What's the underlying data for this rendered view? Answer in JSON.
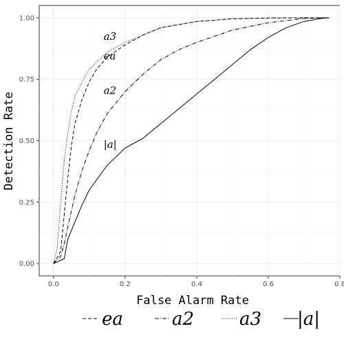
{
  "chart_data": {
    "type": "line",
    "title": "",
    "xlabel": "False Alarm Rate",
    "ylabel": "Detection Rate",
    "xlim": [
      -0.04,
      0.8
    ],
    "ylim": [
      -0.05,
      1.05
    ],
    "x_ticks": [
      "0.0",
      "0.2",
      "0.4",
      "0.6",
      "0.8"
    ],
    "y_ticks": [
      "0.00",
      "0.25",
      "0.50",
      "0.75",
      "1.00"
    ],
    "grid": true,
    "legend_position": "bottom",
    "series": [
      {
        "name": "e^a",
        "label": "ea",
        "dash": "5,3",
        "x": [
          0.0,
          0.02,
          0.03,
          0.04,
          0.05,
          0.06,
          0.08,
          0.1,
          0.12,
          0.15,
          0.2,
          0.25,
          0.3,
          0.4,
          0.5,
          0.6,
          0.7,
          0.77
        ],
        "y": [
          0.0,
          0.05,
          0.2,
          0.35,
          0.48,
          0.57,
          0.67,
          0.74,
          0.79,
          0.84,
          0.89,
          0.93,
          0.96,
          0.985,
          0.996,
          0.999,
          1.0,
          1.0
        ]
      },
      {
        "name": "a^2",
        "label": "a2",
        "dash": "6,2,1,2",
        "x": [
          0.0,
          0.02,
          0.03,
          0.04,
          0.06,
          0.08,
          0.1,
          0.12,
          0.15,
          0.2,
          0.25,
          0.3,
          0.35,
          0.4,
          0.5,
          0.6,
          0.7,
          0.77
        ],
        "y": [
          0.0,
          0.03,
          0.08,
          0.15,
          0.28,
          0.38,
          0.46,
          0.53,
          0.61,
          0.7,
          0.77,
          0.83,
          0.87,
          0.9,
          0.95,
          0.98,
          0.997,
          1.0
        ]
      },
      {
        "name": "a^3",
        "label": "a3",
        "dash": "1,2",
        "x": [
          0.0,
          0.01,
          0.02,
          0.03,
          0.04,
          0.05,
          0.06,
          0.08,
          0.1,
          0.12,
          0.15,
          0.2,
          0.25,
          0.3,
          0.4,
          0.5,
          0.6,
          0.7,
          0.77
        ],
        "y": [
          0.0,
          0.06,
          0.25,
          0.42,
          0.53,
          0.62,
          0.68,
          0.74,
          0.79,
          0.82,
          0.86,
          0.9,
          0.93,
          0.96,
          0.985,
          0.996,
          0.999,
          1.0,
          1.0
        ]
      },
      {
        "name": "|a|",
        "label": "|a|",
        "dash": "",
        "x": [
          0.0,
          0.03,
          0.04,
          0.06,
          0.08,
          0.1,
          0.12,
          0.15,
          0.2,
          0.25,
          0.3,
          0.35,
          0.4,
          0.45,
          0.5,
          0.55,
          0.6,
          0.65,
          0.7,
          0.75,
          0.77
        ],
        "y": [
          0.0,
          0.02,
          0.1,
          0.17,
          0.24,
          0.3,
          0.34,
          0.4,
          0.47,
          0.51,
          0.57,
          0.63,
          0.69,
          0.75,
          0.81,
          0.87,
          0.92,
          0.96,
          0.985,
          0.998,
          1.0
        ]
      }
    ],
    "curve_annotations": [
      {
        "series": "a^3",
        "x": 0.14,
        "y": 0.91
      },
      {
        "series": "e^a",
        "x": 0.14,
        "y": 0.83
      },
      {
        "series": "a^2",
        "x": 0.14,
        "y": 0.69
      },
      {
        "series": "|a|",
        "x": 0.14,
        "y": 0.47
      }
    ],
    "legend_order": [
      "e^a",
      "a^2",
      "a^3",
      "|a|"
    ]
  }
}
